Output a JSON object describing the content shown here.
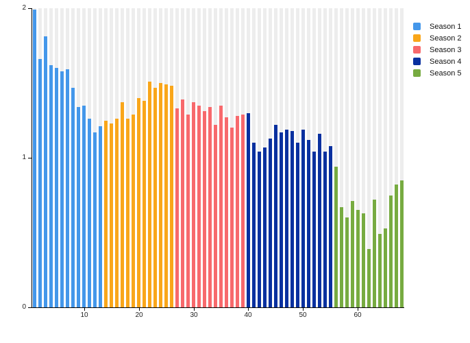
{
  "chart_data": {
    "type": "bar",
    "title": "",
    "xlabel": "",
    "ylabel": "",
    "ylim": [
      0,
      2
    ],
    "total_episodes": 68,
    "y_ticks": [
      "0",
      "1",
      "2"
    ],
    "x_tick_positions": [
      10,
      20,
      30,
      40,
      50,
      60
    ],
    "x_tick_labels": [
      "10",
      "20",
      "30",
      "40",
      "50",
      "60"
    ],
    "grid": "vertical-stripes-per-episode",
    "legend_position": "top-right",
    "series": [
      {
        "name": "Season 1",
        "color": "#4497EA",
        "x": [
          1,
          2,
          3,
          4,
          5,
          6,
          7,
          8,
          9,
          10,
          11,
          12,
          13
        ],
        "values": [
          1.99,
          1.66,
          1.81,
          1.62,
          1.6,
          1.58,
          1.59,
          1.47,
          1.34,
          1.35,
          1.26,
          1.17,
          1.21
        ]
      },
      {
        "name": "Season 2",
        "color": "#F9A61A",
        "x": [
          14,
          15,
          16,
          17,
          18,
          19,
          20,
          21,
          22,
          23,
          24,
          25,
          26
        ],
        "values": [
          1.25,
          1.23,
          1.26,
          1.37,
          1.26,
          1.29,
          1.4,
          1.38,
          1.51,
          1.47,
          1.5,
          1.49,
          1.48
        ]
      },
      {
        "name": "Season 3",
        "color": "#F7696C",
        "x": [
          27,
          28,
          29,
          30,
          31,
          32,
          33,
          34,
          35,
          36,
          37,
          38,
          39
        ],
        "values": [
          1.33,
          1.39,
          1.29,
          1.37,
          1.35,
          1.31,
          1.34,
          1.22,
          1.35,
          1.27,
          1.2,
          1.28,
          1.29
        ]
      },
      {
        "name": "Season 4",
        "color": "#09309F",
        "x": [
          40,
          41,
          42,
          43,
          44,
          45,
          46,
          47,
          48,
          49,
          50,
          51,
          52,
          53,
          54,
          55
        ],
        "values": [
          1.3,
          1.1,
          1.04,
          1.07,
          1.13,
          1.22,
          1.17,
          1.19,
          1.18,
          1.1,
          1.19,
          1.12,
          1.04,
          1.16,
          1.04,
          1.08
        ]
      },
      {
        "name": "Season 5",
        "color": "#77AB41",
        "x": [
          56,
          57,
          58,
          59,
          60,
          61,
          62,
          63,
          64,
          65,
          66,
          67,
          68
        ],
        "values": [
          0.94,
          0.67,
          0.6,
          0.71,
          0.65,
          0.63,
          0.39,
          0.72,
          0.49,
          0.53,
          0.75,
          0.82,
          0.85
        ]
      }
    ],
    "colors": {
      "background": "#ffffff",
      "stripe": "#EDEDED",
      "axis": "#000000",
      "tick_label": "#222222"
    }
  }
}
